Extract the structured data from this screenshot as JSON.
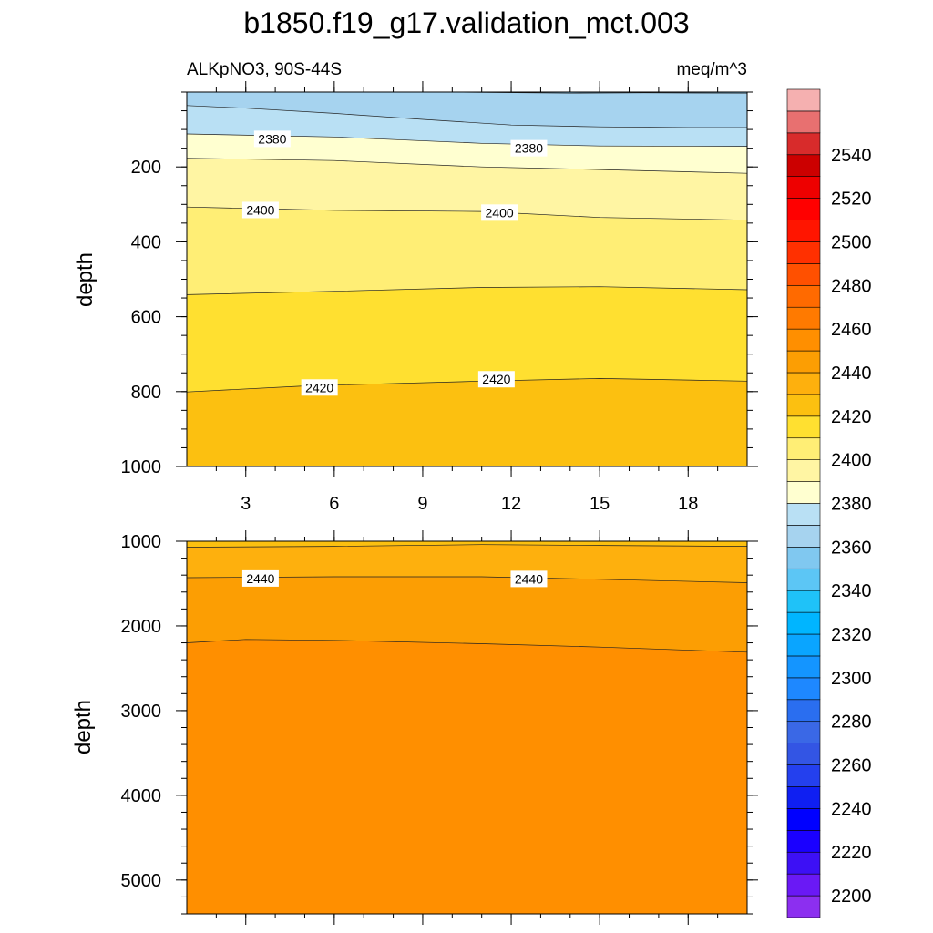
{
  "chart_data": {
    "type": "contour",
    "title": "b1850.f19_g17.validation_mct.003",
    "subtitle_left": "ALKpNO3, 90S-44S",
    "subtitle_right": "meq/m^3",
    "panels": [
      {
        "id": "upper",
        "ylabel": "depth",
        "ylim": [
          0,
          1000
        ],
        "yticks": [
          200,
          400,
          600,
          800,
          1000
        ],
        "xlim": [
          1,
          20
        ],
        "xticks": [
          3,
          6,
          9,
          12,
          15,
          18
        ],
        "contour_lines": [
          {
            "level": 2360,
            "points": [
              [
                10,
                0
              ],
              [
                14,
                3
              ],
              [
                16.5,
                2
              ],
              [
                20,
                3
              ]
            ]
          },
          {
            "level": 2370,
            "points": [
              [
                1,
                36
              ],
              [
                3,
                43
              ],
              [
                6,
                57
              ],
              [
                9,
                73
              ],
              [
                12,
                88
              ],
              [
                15,
                93
              ],
              [
                18,
                95
              ],
              [
                20,
                95
              ]
            ]
          },
          {
            "level": 2380,
            "points": [
              [
                1,
                112
              ],
              [
                6,
                120
              ],
              [
                11,
                137
              ],
              [
                15,
                144
              ],
              [
                20,
                145
              ]
            ]
          },
          {
            "level": 2390,
            "points": [
              [
                1,
                177
              ],
              [
                6,
                183
              ],
              [
                11,
                200
              ],
              [
                15,
                207
              ],
              [
                20,
                217
              ]
            ]
          },
          {
            "level": 2400,
            "points": [
              [
                1,
                307
              ],
              [
                6,
                316
              ],
              [
                11,
                319
              ],
              [
                15,
                335
              ],
              [
                20,
                342
              ]
            ]
          },
          {
            "level": 2410,
            "points": [
              [
                1,
                541
              ],
              [
                6,
                532
              ],
              [
                11,
                522
              ],
              [
                15,
                520
              ],
              [
                20,
                528
              ]
            ]
          },
          {
            "level": 2420,
            "points": [
              [
                1,
                801
              ],
              [
                5,
                785
              ],
              [
                11,
                772
              ],
              [
                15,
                765
              ],
              [
                20,
                772
              ]
            ]
          }
        ],
        "contour_labels": [
          {
            "text": "2380",
            "x": 3.9,
            "y": 125
          },
          {
            "text": "2380",
            "x": 12.6,
            "y": 150
          },
          {
            "text": "2400",
            "x": 3.5,
            "y": 315
          },
          {
            "text": "2400",
            "x": 11.6,
            "y": 322
          },
          {
            "text": "2420",
            "x": 5.5,
            "y": 789
          },
          {
            "text": "2420",
            "x": 11.5,
            "y": 767
          }
        ]
      },
      {
        "id": "lower",
        "ylabel": "depth",
        "ylim": [
          1000,
          5400
        ],
        "yticks": [
          1000,
          2000,
          3000,
          4000,
          5000
        ],
        "xlim": [
          1,
          20
        ],
        "xticks": [
          3,
          6,
          9,
          12,
          15,
          18
        ],
        "contour_lines": [
          {
            "level": 2430,
            "points": [
              [
                1,
                1070
              ],
              [
                6,
                1060
              ],
              [
                11,
                1040
              ],
              [
                15,
                1050
              ],
              [
                20,
                1060
              ]
            ]
          },
          {
            "level": 2440,
            "points": [
              [
                1,
                1430
              ],
              [
                6,
                1420
              ],
              [
                11,
                1420
              ],
              [
                15,
                1450
              ],
              [
                20,
                1490
              ]
            ]
          },
          {
            "level": 2450,
            "points": [
              [
                1,
                2200
              ],
              [
                3,
                2160
              ],
              [
                6,
                2170
              ],
              [
                11,
                2210
              ],
              [
                15,
                2250
              ],
              [
                20,
                2310
              ]
            ]
          }
        ],
        "contour_labels": [
          {
            "text": "2440",
            "x": 3.5,
            "y": 1440
          },
          {
            "text": "2440",
            "x": 12.6,
            "y": 1445
          }
        ]
      }
    ],
    "colorbar": {
      "levels": [
        2190,
        2200,
        2210,
        2220,
        2230,
        2240,
        2250,
        2260,
        2270,
        2280,
        2290,
        2300,
        2310,
        2320,
        2330,
        2340,
        2350,
        2360,
        2370,
        2380,
        2390,
        2400,
        2410,
        2420,
        2430,
        2440,
        2450,
        2460,
        2470,
        2480,
        2490,
        2500,
        2510,
        2520,
        2530,
        2540,
        2550,
        2560
      ],
      "colors": [
        "#8c2ff0",
        "#6a19f5",
        "#3d10f5",
        "#1a00ff",
        "#0000ff",
        "#0f1ff2",
        "#2440ee",
        "#3355e4",
        "#3a68e6",
        "#2a6ef0",
        "#1e88ff",
        "#1495ff",
        "#0aa5ff",
        "#00b5ff",
        "#1fc2f8",
        "#5cc6f5",
        "#80c8f0",
        "#a6d3ef",
        "#b9e0f4",
        "#ffffd0",
        "#fff5a3",
        "#ffee75",
        "#ffe030",
        "#fcc010",
        "#feb00d",
        "#fc9e03",
        "#ff8f00",
        "#ff7a00",
        "#ff6a00",
        "#ff5000",
        "#ff3000",
        "#ff1500",
        "#ff0000",
        "#ee0000",
        "#cc0000",
        "#d82b2b",
        "#e87070",
        "#f5b0b0"
      ],
      "labels": [
        2200,
        2220,
        2240,
        2260,
        2280,
        2300,
        2320,
        2340,
        2360,
        2380,
        2400,
        2420,
        2440,
        2460,
        2480,
        2500,
        2520,
        2540
      ]
    }
  }
}
